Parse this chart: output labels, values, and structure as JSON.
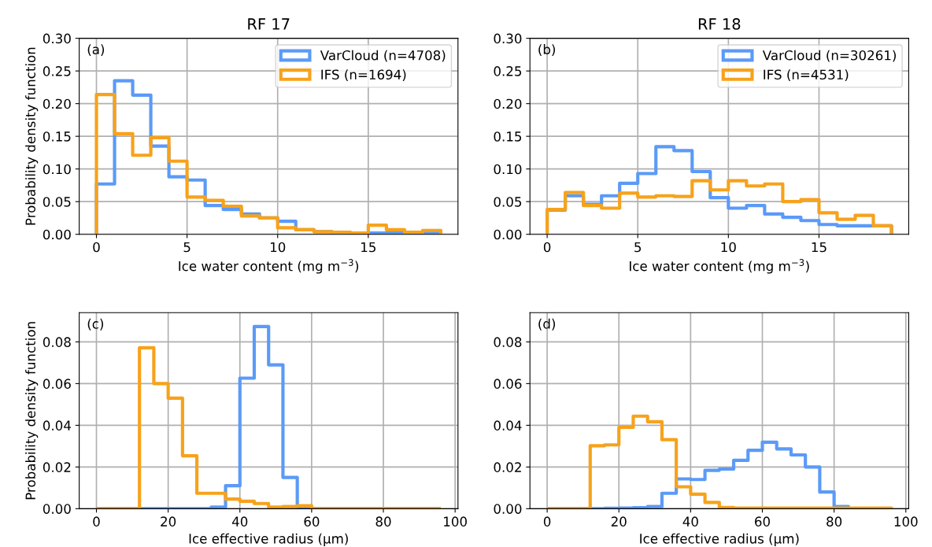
{
  "chart_data": [
    {
      "type": "histogram",
      "title": "RF 17",
      "xlabel": "Ice water content (mg m$^{−3}$)",
      "ylabel": "Probability density function",
      "annotations": [
        "(a)"
      ],
      "bins": [
        0,
        1,
        2,
        3,
        4,
        5,
        6,
        7,
        8,
        9,
        10,
        11,
        12,
        13,
        14,
        15,
        16,
        17,
        18,
        19
      ],
      "series": [
        {
          "name": "VarCloud (n=4708)",
          "color": "#5b9af7",
          "values": [
            0.077,
            0.235,
            0.213,
            0.135,
            0.088,
            0.083,
            0.044,
            0.038,
            0.031,
            0.025,
            0.02,
            0.007,
            0.004,
            0.003,
            0.002,
            0.002,
            0.002,
            0.002,
            0.002
          ]
        },
        {
          "name": "IFS (n=1694)",
          "color": "#f7a21b",
          "values": [
            0.214,
            0.154,
            0.121,
            0.148,
            0.112,
            0.057,
            0.052,
            0.043,
            0.028,
            0.025,
            0.01,
            0.007,
            0.004,
            0.003,
            0.002,
            0.014,
            0.007,
            0.003,
            0.006
          ]
        }
      ],
      "xlim": [
        -0.95,
        19.95
      ],
      "xticks": [
        0,
        5,
        10,
        15
      ],
      "ylim": [
        0,
        0.3
      ],
      "yticks": [
        {
          "value": 0,
          "label": "0.00"
        },
        {
          "value": 0.05,
          "label": "0.05"
        },
        {
          "value": 0.1,
          "label": "0.10"
        },
        {
          "value": 0.15,
          "label": "0.15"
        },
        {
          "value": 0.2,
          "label": "0.20"
        },
        {
          "value": 0.25,
          "label": "0.25"
        },
        {
          "value": 0.3,
          "label": "0.30"
        }
      ],
      "grid": true,
      "legend": "top right"
    },
    {
      "type": "histogram",
      "title": "RF 18",
      "xlabel": "Ice water content (mg m$^{−3}$)",
      "annotations": [
        "(b)"
      ],
      "bins": [
        0,
        1,
        2,
        3,
        4,
        5,
        6,
        7,
        8,
        9,
        10,
        11,
        12,
        13,
        14,
        15,
        16,
        17,
        18,
        19
      ],
      "series": [
        {
          "name": "VarCloud (n=30261)",
          "color": "#5b9af7",
          "values": [
            0.037,
            0.059,
            0.046,
            0.059,
            0.078,
            0.093,
            0.134,
            0.128,
            0.096,
            0.056,
            0.04,
            0.044,
            0.031,
            0.026,
            0.021,
            0.015,
            0.013,
            0.013,
            0.013
          ]
        },
        {
          "name": "IFS (n=4531)",
          "color": "#f7a21b",
          "values": [
            0.038,
            0.064,
            0.044,
            0.04,
            0.063,
            0.057,
            0.059,
            0.058,
            0.082,
            0.068,
            0.082,
            0.074,
            0.077,
            0.05,
            0.053,
            0.033,
            0.023,
            0.029,
            0.013
          ]
        }
      ],
      "xlim": [
        -0.95,
        19.95
      ],
      "xticks": [
        0,
        5,
        10,
        15
      ],
      "ylim": [
        0,
        0.3
      ],
      "yticks": [
        {
          "value": 0,
          "label": "0.00"
        },
        {
          "value": 0.05,
          "label": "0.05"
        },
        {
          "value": 0.1,
          "label": "0.10"
        },
        {
          "value": 0.15,
          "label": "0.15"
        },
        {
          "value": 0.2,
          "label": "0.20"
        },
        {
          "value": 0.25,
          "label": "0.25"
        },
        {
          "value": 0.3,
          "label": "0.30"
        }
      ],
      "grid": true,
      "legend": "top right"
    },
    {
      "type": "histogram",
      "xlabel": "Ice effective radius (μm)",
      "ylabel": "Probability density function",
      "annotations": [
        "(c)"
      ],
      "bins": [
        0,
        4,
        8,
        12,
        16,
        20,
        24,
        28,
        32,
        36,
        40,
        44,
        48,
        52,
        56,
        60,
        64,
        68,
        72,
        76,
        80,
        84,
        88,
        92,
        96
      ],
      "series": [
        {
          "color": "#5b9af7",
          "values": [
            0,
            0,
            0,
            0,
            0,
            0,
            0,
            0,
            0.0008,
            0.011,
            0.0626,
            0.0874,
            0.069,
            0.015,
            0.0004,
            0,
            0,
            0,
            0,
            0,
            0,
            0,
            0,
            0
          ]
        },
        {
          "color": "#f7a21b",
          "values": [
            0,
            0,
            0,
            0.0772,
            0.06,
            0.053,
            0.0254,
            0.0074,
            0.0074,
            0.0046,
            0.0036,
            0.0025,
            0.0008,
            0.001,
            0.0014,
            0,
            0,
            0,
            0,
            0,
            0,
            0,
            0,
            0
          ]
        }
      ],
      "xlim": [
        -4.8,
        100.8
      ],
      "xticks": [
        0,
        20,
        40,
        60,
        80,
        100
      ],
      "ylim": [
        0,
        0.094
      ],
      "yticks": [
        {
          "value": 0,
          "label": "0.00"
        },
        {
          "value": 0.02,
          "label": "0.02"
        },
        {
          "value": 0.04,
          "label": "0.04"
        },
        {
          "value": 0.06,
          "label": "0.06"
        },
        {
          "value": 0.08,
          "label": "0.08"
        }
      ],
      "grid": true
    },
    {
      "type": "histogram",
      "xlabel": "Ice effective radius (μm)",
      "annotations": [
        "(d)"
      ],
      "bins": [
        0,
        4,
        8,
        12,
        16,
        20,
        24,
        28,
        32,
        36,
        40,
        44,
        48,
        52,
        56,
        60,
        64,
        68,
        72,
        76,
        80,
        84,
        88,
        92,
        96
      ],
      "series": [
        {
          "color": "#5b9af7",
          "values": [
            0,
            0,
            0,
            0,
            0.0002,
            0.0003,
            0.0005,
            0.001,
            0.0074,
            0.0143,
            0.014,
            0.0184,
            0.019,
            0.0232,
            0.028,
            0.0319,
            0.0287,
            0.0258,
            0.02,
            0.008,
            0.001,
            0,
            0,
            0
          ]
        },
        {
          "color": "#f7a21b",
          "values": [
            0,
            0,
            0,
            0.0302,
            0.0306,
            0.039,
            0.0444,
            0.0417,
            0.0331,
            0.0105,
            0.007,
            0.003,
            0.0006,
            0.0003,
            0.0003,
            0.0003,
            0.0003,
            0.0003,
            0.0003,
            0.0003,
            0.0003,
            0.0003,
            0.0003,
            0.0003
          ]
        }
      ],
      "xlim": [
        -4.8,
        100.8
      ],
      "xticks": [
        0,
        20,
        40,
        60,
        80,
        100
      ],
      "ylim": [
        0,
        0.094
      ],
      "yticks": [
        {
          "value": 0,
          "label": "0.00"
        },
        {
          "value": 0.02,
          "label": "0.02"
        },
        {
          "value": 0.04,
          "label": "0.04"
        },
        {
          "value": 0.06,
          "label": "0.06"
        },
        {
          "value": 0.08,
          "label": "0.08"
        }
      ],
      "grid": true
    }
  ]
}
